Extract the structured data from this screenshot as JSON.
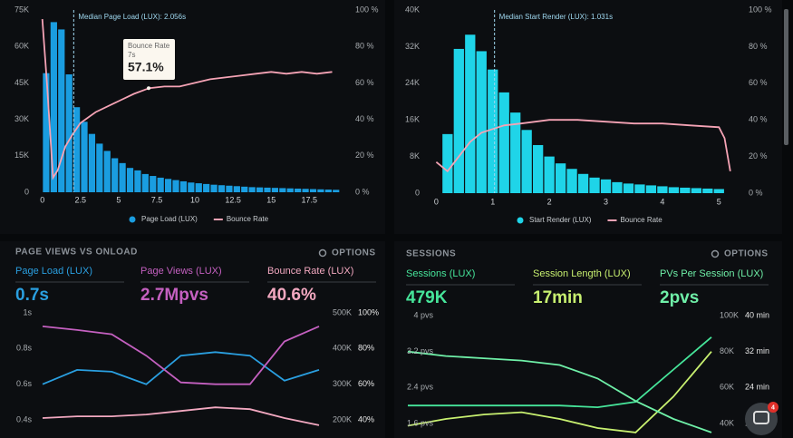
{
  "chart_data": [
    {
      "type": "histogram",
      "annotation": "Median Page Load (LUX): 2.056s",
      "median": 2.056,
      "bins": [
        0,
        0.5,
        1,
        1.5,
        2,
        2.5,
        3,
        3.5,
        4,
        4.5,
        5,
        5.5,
        6,
        6.5,
        7,
        7.5,
        8,
        8.5,
        9,
        9.5,
        10,
        10.5,
        11,
        11.5,
        12,
        12.5,
        13,
        13.5,
        14,
        14.5,
        15,
        15.5,
        16,
        16.5,
        17,
        17.5,
        18,
        18.5,
        19,
        19.5
      ],
      "xlim": [
        -0.4,
        19.8
      ],
      "xticks": [
        0,
        2.5,
        5,
        7.5,
        10,
        12.5,
        15,
        17.5
      ],
      "ylim": [
        0,
        75000
      ],
      "yticks": [
        0,
        {
          "value": 15000,
          "label": "15K"
        },
        {
          "value": 30000,
          "label": "30K"
        },
        {
          "value": 45000,
          "label": "45K"
        },
        {
          "value": 60000,
          "label": "60K"
        },
        {
          "value": 75000,
          "label": "75K"
        }
      ],
      "y2lim": [
        0,
        100
      ],
      "y2ticks": [
        {
          "value": 0,
          "label": "0 %"
        },
        {
          "value": 20,
          "label": "20 %"
        },
        {
          "value": 40,
          "label": "40 %"
        },
        {
          "value": 60,
          "label": "60 %"
        },
        {
          "value": 80,
          "label": "80 %"
        },
        {
          "value": 100,
          "label": "100 %"
        }
      ],
      "series": [
        {
          "name": "Page Load (LUX)",
          "color": "#1a9de0",
          "values": [
            49000,
            70000,
            67000,
            48500,
            35000,
            29000,
            24000,
            20000,
            17000,
            14000,
            12000,
            10000,
            9000,
            7500,
            6700,
            6000,
            5500,
            5000,
            4500,
            4000,
            3700,
            3400,
            3100,
            2900,
            2700,
            2500,
            2300,
            2100,
            2000,
            1900,
            1800,
            1700,
            1600,
            1500,
            1400,
            1300,
            1200,
            1100,
            1000
          ]
        },
        {
          "name": "Bounce Rate",
          "color": "#f5a3b5",
          "axis": "y2",
          "x": [
            0,
            0.3,
            0.7,
            1,
            1.5,
            2,
            2.5,
            3.5,
            5,
            6,
            7,
            8,
            9,
            10,
            11,
            12,
            13,
            14,
            15,
            16,
            17,
            18,
            19
          ],
          "values": [
            95,
            60,
            8,
            12,
            25,
            32,
            38,
            44,
            50,
            54,
            57.1,
            58,
            58,
            60,
            62,
            63,
            64,
            65,
            66,
            65,
            66,
            65,
            66
          ]
        }
      ],
      "tooltip": {
        "title": "Bounce Rate",
        "x": "7s",
        "value": 57.1,
        "value_label": "57.1%"
      }
    },
    {
      "type": "histogram",
      "annotation": "Median Start Render (LUX): 1.031s",
      "median": 1.031,
      "bins": [
        0.1,
        0.3,
        0.5,
        0.7,
        0.9,
        1.1,
        1.3,
        1.5,
        1.7,
        1.9,
        2.1,
        2.3,
        2.5,
        2.7,
        2.9,
        3.1,
        3.3,
        3.5,
        3.7,
        3.9,
        4.1,
        4.3,
        4.5,
        4.7,
        4.9,
        5.1
      ],
      "xlim": [
        -0.15,
        5.3
      ],
      "xticks": [
        0,
        1,
        2,
        3,
        4,
        5
      ],
      "ylim": [
        0,
        40000
      ],
      "yticks": [
        0,
        {
          "value": 8000,
          "label": "8K"
        },
        {
          "value": 16000,
          "label": "16K"
        },
        {
          "value": 24000,
          "label": "24K"
        },
        {
          "value": 32000,
          "label": "32K"
        },
        {
          "value": 40000,
          "label": "40K"
        }
      ],
      "y2lim": [
        0,
        100
      ],
      "y2ticks": [
        {
          "value": 0,
          "label": "0 %"
        },
        {
          "value": 20,
          "label": "20 %"
        },
        {
          "value": 40,
          "label": "40 %"
        },
        {
          "value": 60,
          "label": "60 %"
        },
        {
          "value": 80,
          "label": "80 %"
        },
        {
          "value": 100,
          "label": "100 %"
        }
      ],
      "series": [
        {
          "name": "Start Render (LUX)",
          "color": "#1fd4e8",
          "values": [
            12900,
            31500,
            34600,
            31000,
            27000,
            22000,
            17600,
            13800,
            10500,
            8000,
            6500,
            5300,
            4200,
            3400,
            3000,
            2400,
            2100,
            1900,
            1700,
            1500,
            1300,
            1200,
            1100,
            1000,
            900
          ]
        },
        {
          "name": "Bounce Rate",
          "color": "#f5a3b5",
          "axis": "y2",
          "x": [
            0,
            0.2,
            0.4,
            0.6,
            0.8,
            1,
            1.2,
            1.5,
            2,
            2.5,
            3,
            3.5,
            4,
            4.5,
            5,
            5.1,
            5.2
          ],
          "values": [
            17,
            12,
            20,
            28,
            33,
            35,
            37,
            38,
            40,
            40,
            39,
            38,
            38,
            37,
            36,
            30,
            12
          ]
        }
      ]
    },
    {
      "type": "line",
      "categories": [
        null,
        null,
        null,
        null,
        null,
        null,
        null,
        null,
        null
      ],
      "ylim": [
        0.4,
        1
      ],
      "yticks": [
        {
          "value": 1,
          "label": "1s"
        },
        {
          "value": 0.8,
          "label": "0.8s"
        },
        {
          "value": 0.6,
          "label": "0.6s"
        },
        {
          "value": 0.4,
          "label": "0.4s"
        }
      ],
      "y2lim": [
        200000,
        500000
      ],
      "y2ticks": [
        {
          "value": 500000,
          "label": "500K"
        },
        {
          "value": 400000,
          "label": "400K"
        },
        {
          "value": 300000,
          "label": "300K"
        },
        {
          "value": 200000,
          "label": "200K"
        }
      ],
      "y3lim": [
        40,
        100
      ],
      "y3ticks": [
        {
          "value": 100,
          "label": "100%"
        },
        {
          "value": 80,
          "label": "80%"
        },
        {
          "value": 60,
          "label": "60%"
        },
        {
          "value": 40,
          "label": "40%"
        }
      ],
      "series": [
        {
          "name": "Page Load (LUX)",
          "summary": "0.7s",
          "color": "#2a9fe0",
          "values": [
            0.6,
            0.68,
            0.67,
            0.6,
            0.76,
            0.78,
            0.76,
            0.62,
            0.68
          ]
        },
        {
          "name": "Page Views (LUX)",
          "summary": "2.7Mpvs",
          "color": "#c460c0",
          "axis": "y2",
          "values": [
            462000,
            452000,
            440000,
            380000,
            305000,
            300000,
            300000,
            420000,
            462000
          ]
        },
        {
          "name": "Bounce Rate (LUX)",
          "summary": "40.6%",
          "color": "#f2a8c0",
          "axis": "y3",
          "values": [
            41,
            42,
            42,
            43,
            45,
            47,
            46,
            41,
            37
          ]
        }
      ]
    },
    {
      "type": "line",
      "categories": [
        null,
        null,
        null,
        null,
        null,
        null,
        null,
        null,
        null
      ],
      "ylim": [
        1.6,
        4
      ],
      "yticks": [
        {
          "value": 4,
          "label": "4 pvs"
        },
        {
          "value": 3.2,
          "label": "3.2 pvs"
        },
        {
          "value": 2.4,
          "label": "2.4 pvs"
        },
        {
          "value": 1.6,
          "label": "1.6 pvs"
        }
      ],
      "y2lim": [
        40000,
        100000
      ],
      "y2ticks": [
        {
          "value": 100000,
          "label": "100K"
        },
        {
          "value": 80000,
          "label": "80K"
        },
        {
          "value": 60000,
          "label": "60K"
        },
        {
          "value": 40000,
          "label": "40K"
        }
      ],
      "y3lim": [
        16,
        40
      ],
      "y3ticks": [
        {
          "value": 40,
          "label": "40 min"
        },
        {
          "value": 32,
          "label": "32 min"
        },
        {
          "value": 24,
          "label": "24 min"
        },
        {
          "value": 16,
          "label": "16 min"
        }
      ],
      "series": [
        {
          "name": "Sessions (LUX)",
          "summary": "479K",
          "color": "#46e59a",
          "axis": "y2",
          "values": [
            50000,
            50000,
            50000,
            50000,
            50000,
            49000,
            52000,
            70000,
            88000
          ]
        },
        {
          "name": "Session Length (LUX)",
          "summary": "17min",
          "color": "#c8f070",
          "axis": "y3",
          "values": [
            15.5,
            17,
            18,
            18.5,
            17,
            15,
            14,
            22,
            32
          ]
        },
        {
          "name": "PVs Per Session (LUX)",
          "summary": "2pvs",
          "color": "#6ff0a8",
          "values": [
            3.2,
            3.1,
            3.05,
            3,
            2.9,
            2.6,
            2.1,
            1.7,
            1.4
          ]
        }
      ]
    }
  ],
  "panels": [
    {
      "title": "PAGE VIEWS VS ONLOAD",
      "options": "OPTIONS"
    },
    {
      "title": "SESSIONS",
      "options": "OPTIONS"
    }
  ],
  "chat_badge": "4"
}
